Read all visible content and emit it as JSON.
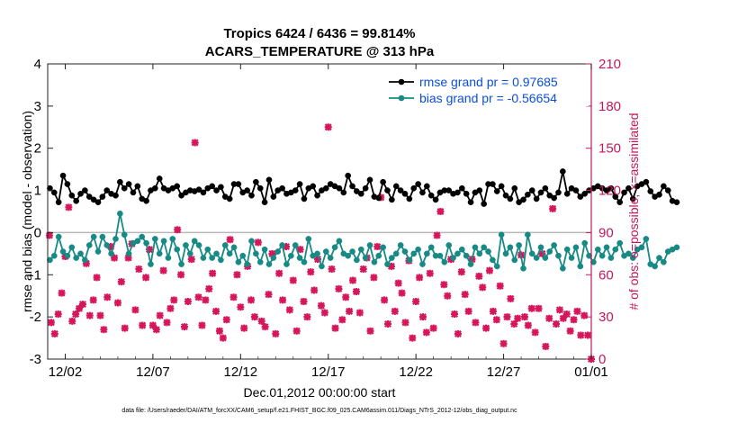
{
  "chart_data": {
    "type": "line",
    "title": "Tropics 6424 / 6436 = 99.814%",
    "subtitle": "ACARS_TEMPERATURE @ 313 hPa",
    "xlabel": "Dec.01,2012 00:00:00 start",
    "ylabel": "rmse and bias (model - observation)",
    "ylabel_right": "# of obs: o=possible; ×=assimilated",
    "ylim": [
      -3,
      4
    ],
    "yticks": [
      -3,
      -2,
      -1,
      0,
      1,
      2,
      3,
      4
    ],
    "ylim_right": [
      0,
      210
    ],
    "yticks_right": [
      0,
      30,
      60,
      90,
      120,
      150,
      180,
      210
    ],
    "xlim": [
      0,
      31
    ],
    "xticks": [
      {
        "x": 1,
        "label": "12/02"
      },
      {
        "x": 6,
        "label": "12/07"
      },
      {
        "x": 11,
        "label": "12/12"
      },
      {
        "x": 16,
        "label": "12/17"
      },
      {
        "x": 21,
        "label": "12/22"
      },
      {
        "x": 26,
        "label": "12/27"
      },
      {
        "x": 31,
        "label": "01/01"
      }
    ],
    "legend_position": "top-right",
    "zero_line": true,
    "footnote": "data file: /Users/raeder/DAI/ATM_forcXX/CAM6_setup/f.e21.FHIST_BGC.f09_025.CAM6assim.011/Diags_NTrS_2012-12/obs_diag_output.nc",
    "colors": {
      "rmse": "#000000",
      "bias": "#178a86",
      "obs_count": "#d6155a",
      "legend_text": "#0b4fd6",
      "right_axis": "#c2185b"
    },
    "series": [
      {
        "name": "rmse grand pr = 0.97685",
        "axis": "left",
        "x_start": 0.125,
        "x_step": 0.25,
        "values": [
          1.05,
          0.95,
          0.72,
          1.35,
          1.15,
          0.88,
          0.75,
          0.92,
          1.0,
          0.85,
          0.78,
          0.72,
          0.85,
          1.0,
          0.92,
          0.88,
          1.2,
          1.05,
          1.15,
          0.95,
          1.1,
          0.8,
          0.75,
          1.0,
          1.05,
          1.28,
          1.05,
          1.0,
          1.05,
          1.1,
          0.88,
          0.95,
          1.0,
          0.98,
          1.02,
          0.95,
          1.05,
          1.1,
          1.0,
          1.08,
          0.85,
          0.8,
          1.15,
          1.15,
          0.95,
          1.0,
          0.88,
          1.2,
          1.05,
          0.72,
          1.25,
          0.85,
          1.0,
          1.05,
          0.92,
          0.95,
          1.0,
          1.15,
          0.8,
          1.05,
          1.1,
          0.88,
          1.0,
          1.05,
          1.15,
          1.1,
          1.05,
          0.95,
          1.35,
          1.1,
          0.98,
          0.92,
          1.05,
          1.25,
          0.85,
          0.82,
          1.2,
          1.0,
          0.78,
          1.1,
          1.0,
          0.92,
          0.8,
          1.05,
          1.15,
          0.95,
          1.1,
          0.88,
          0.78,
          0.95,
          1.0,
          1.0,
          0.92,
          0.95,
          1.05,
          0.92,
          0.72,
          0.95,
          1.0,
          0.68,
          1.15,
          1.15,
          0.98,
          1.1,
          0.88,
          0.8,
          1.05,
          0.72,
          0.78,
          0.9,
          1.0,
          0.8,
          0.95,
          1.05,
          0.88,
          0.82,
          0.95,
          1.45,
          0.92,
          1.05,
          1.0,
          0.85,
          0.92,
          1.0,
          1.05,
          1.1,
          1.05,
          1.0,
          1.05,
          0.85,
          0.72,
          0.95,
          1.05,
          0.8,
          1.1,
          1.15,
          1.2,
          0.98,
          0.85,
          0.9,
          1.1,
          1.0,
          0.75,
          0.72
        ]
      },
      {
        "name": "bias grand pr = -0.56654",
        "axis": "left",
        "x_start": 0.125,
        "x_step": 0.25,
        "values": [
          -0.65,
          -0.55,
          -0.1,
          -0.45,
          -0.55,
          -0.35,
          -0.6,
          -0.5,
          -0.65,
          -0.3,
          -0.1,
          -0.45,
          -0.1,
          -0.3,
          -0.5,
          -0.15,
          0.45,
          -0.05,
          -0.5,
          -0.25,
          -0.2,
          -0.1,
          -0.25,
          -0.75,
          -0.15,
          -0.5,
          -0.2,
          -0.6,
          -0.15,
          -0.4,
          -0.75,
          -0.3,
          -0.5,
          -0.2,
          -0.3,
          -0.6,
          -0.4,
          -0.6,
          -0.5,
          -0.65,
          -0.3,
          -0.5,
          -0.35,
          -0.7,
          -0.55,
          -0.75,
          -0.2,
          -0.5,
          -0.7,
          -0.4,
          -0.75,
          -0.6,
          -0.45,
          -0.3,
          -0.75,
          -0.55,
          -0.3,
          -0.6,
          -0.7,
          -0.15,
          -0.55,
          -0.5,
          -0.8,
          -0.45,
          -0.6,
          -0.35,
          -0.2,
          -0.5,
          -0.55,
          -0.45,
          -0.65,
          -0.4,
          -0.6,
          -0.3,
          -0.7,
          -0.55,
          -0.35,
          -0.75,
          -0.6,
          -0.5,
          -0.3,
          -0.45,
          -0.65,
          -0.5,
          -0.4,
          -0.75,
          -0.5,
          -0.35,
          -0.55,
          -0.55,
          -0.7,
          -0.3,
          -0.6,
          -0.5,
          -0.4,
          -0.55,
          -0.75,
          -0.35,
          -0.5,
          -0.35,
          -0.45,
          -0.65,
          -0.8,
          -0.05,
          -0.5,
          -0.35,
          -0.65,
          -0.3,
          -0.85,
          -0.05,
          -0.5,
          -0.6,
          -0.35,
          -0.6,
          -0.45,
          -0.3,
          -0.55,
          -0.85,
          -0.4,
          -0.6,
          -0.35,
          -0.8,
          -0.25,
          -0.55,
          -0.7,
          -0.4,
          -0.55,
          -0.35,
          -0.6,
          -0.4,
          -0.25,
          -0.55,
          -0.5,
          -0.6,
          -0.4,
          -0.35,
          -0.15,
          -0.75,
          -0.8,
          -0.6,
          -0.7,
          -0.45,
          -0.4,
          -0.35
        ]
      },
      {
        "name": "obs count (assimilated)",
        "axis": "right",
        "points": [
          [
            0.1,
            88
          ],
          [
            0.2,
            26
          ],
          [
            0.4,
            18
          ],
          [
            0.6,
            32
          ],
          [
            0.8,
            47
          ],
          [
            1.0,
            73
          ],
          [
            1.2,
            108
          ],
          [
            1.4,
            27
          ],
          [
            1.6,
            32
          ],
          [
            1.8,
            36
          ],
          [
            2.0,
            39
          ],
          [
            2.2,
            68
          ],
          [
            2.4,
            31
          ],
          [
            2.6,
            42
          ],
          [
            2.8,
            58
          ],
          [
            3.0,
            31
          ],
          [
            3.2,
            21
          ],
          [
            3.4,
            44
          ],
          [
            3.6,
            80
          ],
          [
            3.8,
            72
          ],
          [
            4.0,
            40
          ],
          [
            4.2,
            55
          ],
          [
            4.4,
            22
          ],
          [
            4.6,
            72
          ],
          [
            4.8,
            82
          ],
          [
            5.0,
            35
          ],
          [
            5.2,
            64
          ],
          [
            5.4,
            24
          ],
          [
            5.6,
            58
          ],
          [
            5.8,
            78
          ],
          [
            6.0,
            24
          ],
          [
            6.2,
            21
          ],
          [
            6.4,
            31
          ],
          [
            6.6,
            63
          ],
          [
            6.8,
            26
          ],
          [
            7.0,
            36
          ],
          [
            7.2,
            42
          ],
          [
            7.4,
            92
          ],
          [
            7.6,
            60
          ],
          [
            7.8,
            23
          ],
          [
            8.0,
            41
          ],
          [
            8.2,
            71
          ],
          [
            8.4,
            154
          ],
          [
            8.6,
            44
          ],
          [
            8.8,
            24
          ],
          [
            9.0,
            42
          ],
          [
            9.2,
            50
          ],
          [
            9.4,
            61
          ],
          [
            9.6,
            34
          ],
          [
            9.8,
            20
          ],
          [
            10.0,
            15
          ],
          [
            10.2,
            28
          ],
          [
            10.4,
            85
          ],
          [
            10.6,
            44
          ],
          [
            10.8,
            60
          ],
          [
            11.0,
            37
          ],
          [
            11.2,
            22
          ],
          [
            11.4,
            66
          ],
          [
            11.6,
            42
          ],
          [
            11.8,
            30
          ],
          [
            12.0,
            83
          ],
          [
            12.2,
            27
          ],
          [
            12.4,
            23
          ],
          [
            12.6,
            46
          ],
          [
            12.8,
            75
          ],
          [
            13.0,
            18
          ],
          [
            13.2,
            61
          ],
          [
            13.4,
            42
          ],
          [
            13.6,
            80
          ],
          [
            13.8,
            35
          ],
          [
            14.0,
            56
          ],
          [
            14.2,
            20
          ],
          [
            14.4,
            78
          ],
          [
            14.6,
            41
          ],
          [
            14.8,
            30
          ],
          [
            15.0,
            62
          ],
          [
            15.2,
            49
          ],
          [
            15.4,
            71
          ],
          [
            15.6,
            38
          ],
          [
            15.8,
            33
          ],
          [
            16.0,
            165
          ],
          [
            16.2,
            64
          ],
          [
            16.4,
            22
          ],
          [
            16.6,
            50
          ],
          [
            16.8,
            28
          ],
          [
            17.0,
            44
          ],
          [
            17.2,
            34
          ],
          [
            17.4,
            56
          ],
          [
            17.6,
            48
          ],
          [
            17.8,
            33
          ],
          [
            18.0,
            64
          ],
          [
            18.2,
            72
          ],
          [
            18.4,
            20
          ],
          [
            18.6,
            58
          ],
          [
            18.8,
            80
          ],
          [
            19.0,
            115
          ],
          [
            19.2,
            42
          ],
          [
            19.4,
            25
          ],
          [
            19.6,
            66
          ],
          [
            19.8,
            34
          ],
          [
            20.0,
            54
          ],
          [
            20.2,
            47
          ],
          [
            20.4,
            26
          ],
          [
            20.6,
            70
          ],
          [
            20.8,
            15
          ],
          [
            21.0,
            41
          ],
          [
            21.2,
            58
          ],
          [
            21.4,
            30
          ],
          [
            21.6,
            19
          ],
          [
            21.8,
            61
          ],
          [
            22.0,
            22
          ],
          [
            22.2,
            88
          ],
          [
            22.4,
            105
          ],
          [
            22.6,
            53
          ],
          [
            22.8,
            45
          ],
          [
            23.0,
            71
          ],
          [
            23.2,
            32
          ],
          [
            23.4,
            18
          ],
          [
            23.6,
            62
          ],
          [
            23.8,
            46
          ],
          [
            24.0,
            34
          ],
          [
            24.2,
            71
          ],
          [
            24.4,
            26
          ],
          [
            24.6,
            59
          ],
          [
            24.8,
            51
          ],
          [
            25.0,
            22
          ],
          [
            25.2,
            63
          ],
          [
            25.4,
            34
          ],
          [
            25.6,
            28
          ],
          [
            25.8,
            52
          ],
          [
            26.0,
            11
          ],
          [
            26.2,
            30
          ],
          [
            26.4,
            43
          ],
          [
            26.6,
            25
          ],
          [
            26.8,
            29
          ],
          [
            27.0,
            74
          ],
          [
            27.2,
            30
          ],
          [
            27.4,
            24
          ],
          [
            27.6,
            36
          ],
          [
            27.8,
            19
          ],
          [
            28.0,
            36
          ],
          [
            28.2,
            75
          ],
          [
            28.4,
            9
          ],
          [
            28.6,
            29
          ],
          [
            28.8,
            107
          ],
          [
            29.0,
            25
          ],
          [
            29.2,
            35
          ],
          [
            29.4,
            29
          ],
          [
            29.6,
            32
          ],
          [
            29.8,
            20
          ],
          [
            30.0,
            28
          ],
          [
            30.2,
            34
          ],
          [
            30.4,
            17
          ],
          [
            30.6,
            31
          ],
          [
            30.8,
            17
          ],
          [
            31.0,
            0
          ]
        ]
      }
    ]
  }
}
